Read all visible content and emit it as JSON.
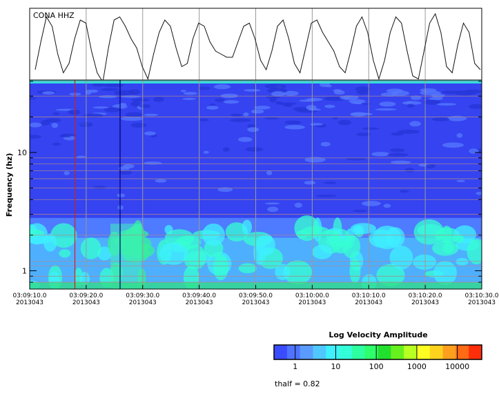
{
  "chart_data": [
    {
      "type": "line",
      "title": "CONA HHZ",
      "series": [
        {
          "values": [
            0.1,
            0.55,
            0.95,
            0.8,
            0.35,
            0.05,
            0.2,
            0.6,
            0.9,
            0.85,
            0.4,
            0.05,
            -0.1,
            0.45,
            0.9,
            0.95,
            0.8,
            0.6,
            0.45,
            0.15,
            -0.05,
            0.35,
            0.7,
            0.9,
            0.8,
            0.45,
            0.15,
            0.2,
            0.6,
            0.85,
            0.8,
            0.55,
            0.4,
            0.35,
            0.3,
            0.3,
            0.55,
            0.8,
            0.85,
            0.6,
            0.25,
            0.1,
            0.4,
            0.8,
            0.9,
            0.6,
            0.2,
            0.05,
            0.45,
            0.85,
            0.9,
            0.7,
            0.55,
            0.4,
            0.15,
            0.05,
            0.4,
            0.8,
            0.95,
            0.7,
            0.25,
            -0.05,
            0.25,
            0.7,
            0.95,
            0.85,
            0.4,
            0.0,
            -0.05,
            0.4,
            0.85,
            1.0,
            0.7,
            0.15,
            0.05,
            0.5,
            0.85,
            0.7,
            0.2,
            0.1
          ]
        }
      ]
    },
    {
      "type": "heatmap",
      "x_tick_labels": [
        {
          "time": "03:09:10.0",
          "date": "2013043"
        },
        {
          "time": "03:09:20.0",
          "date": "2013043"
        },
        {
          "time": "03:09:30.0",
          "date": "2013043"
        },
        {
          "time": "03:09:40.0",
          "date": "2013043"
        },
        {
          "time": "03:09:50.0",
          "date": "2013043"
        },
        {
          "time": "03:10:00.0",
          "date": "2013043"
        },
        {
          "time": "03:10:10.0",
          "date": "2013043"
        },
        {
          "time": "03:10:20.0",
          "date": "2013043"
        },
        {
          "time": "03:10:30.0",
          "date": "2013043"
        }
      ],
      "xlim": [
        "03:09:10.0",
        "03:10:30.0"
      ],
      "ylabel": "Frequency (hz)",
      "y_scale": "log",
      "ylim": [
        0.7,
        41
      ],
      "y_tick_labels": [
        "1",
        "10"
      ],
      "marker_lines": [
        {
          "time": "03:09:18.0",
          "color": "#cc2222"
        },
        {
          "time": "03:09:26.0",
          "color": "#000066"
        }
      ],
      "colorbar": {
        "title": "Log Velocity Amplitude",
        "scale": "log",
        "range": [
          0.3,
          40000
        ],
        "tick_labels": [
          "1",
          "10",
          "100",
          "1000",
          "10000"
        ],
        "colors": [
          "#3a4cff",
          "#4f73ff",
          "#5a9bff",
          "#4fc7ff",
          "#3ff0ff",
          "#33ffd8",
          "#2effa0",
          "#2eff6a",
          "#22e02e",
          "#66f01e",
          "#b8ff22",
          "#ffff22",
          "#ffd21e",
          "#ff9f1e",
          "#ff6a14",
          "#ff2e0a"
        ]
      },
      "annotation": "thalf = 0.82"
    }
  ]
}
